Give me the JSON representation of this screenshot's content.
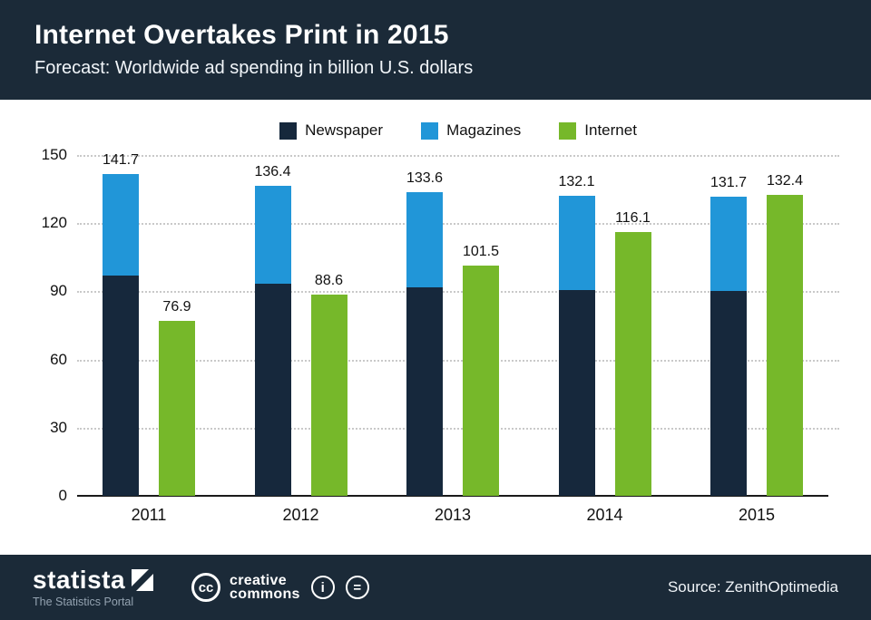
{
  "header": {
    "title": "Internet Overtakes Print in 2015",
    "subtitle": "Forecast: Worldwide ad spending in billion U.S. dollars"
  },
  "chart_data": {
    "type": "bar",
    "title": "Internet Overtakes Print in 2015",
    "subtitle": "Forecast: Worldwide ad spending in billion U.S. dollars",
    "categories": [
      "2011",
      "2012",
      "2013",
      "2014",
      "2015"
    ],
    "series": [
      {
        "name": "Newspaper",
        "color": "#16283c",
        "values": [
          97.0,
          93.5,
          91.7,
          90.6,
          90.2
        ]
      },
      {
        "name": "Magazines",
        "color": "#2196d8",
        "values": [
          44.7,
          42.9,
          41.9,
          41.5,
          41.5
        ]
      },
      {
        "name": "Internet",
        "color": "#76b82a",
        "values": [
          76.9,
          88.6,
          101.5,
          116.1,
          132.4
        ]
      }
    ],
    "stacked_series": [
      "Newspaper",
      "Magazines"
    ],
    "stacked_totals": [
      141.7,
      136.4,
      133.6,
      132.1,
      131.7
    ],
    "internet_values": [
      76.9,
      88.6,
      101.5,
      116.1,
      132.4
    ],
    "ylim": [
      0,
      150
    ],
    "yticks": [
      0,
      30,
      60,
      90,
      120,
      150
    ],
    "grid": "dotted-horizontal",
    "legend_position": "top",
    "xlabel": "",
    "ylabel": ""
  },
  "footer": {
    "brand": "statista",
    "tagline": "The Statistics Portal",
    "cc_icon_text": "cc",
    "cc_line1": "creative",
    "cc_line2": "commons",
    "attribution_icon_text": "i",
    "nd_icon_text": "=",
    "source": "Source: ZenithOptimedia"
  }
}
